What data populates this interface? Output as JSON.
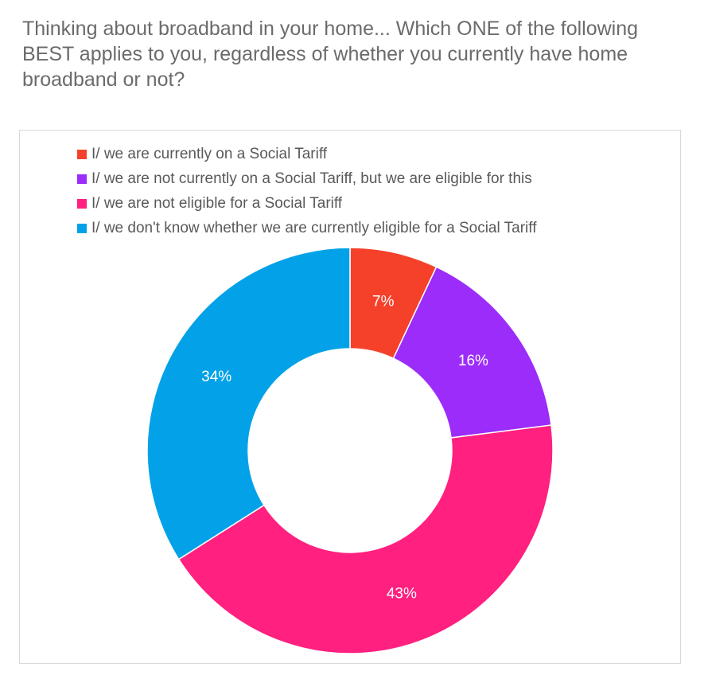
{
  "title": "Thinking about broadband in your home... Which ONE of the following BEST applies to you, regardless of whether you currently have home broadband or not?",
  "chart_data": {
    "type": "pie",
    "subtype": "donut",
    "title": "Thinking about broadband in your home... Which ONE of the following BEST applies to you, regardless of whether you currently have home broadband or not?",
    "legend_position": "top",
    "categories": [
      "I/ we are currently on a Social Tariff",
      "I/ we are not currently on a Social Tariff, but we are eligible for this",
      "I/ we are not eligible for a Social Tariff",
      "I/ we don't know whether we are currently eligible for a Social Tariff"
    ],
    "values": [
      7,
      16,
      43,
      34
    ],
    "value_labels": [
      "7%",
      "16%",
      "43%",
      "34%"
    ],
    "colors": [
      "#f5412a",
      "#9b2cf9",
      "#ff2080",
      "#03a2e8"
    ]
  }
}
